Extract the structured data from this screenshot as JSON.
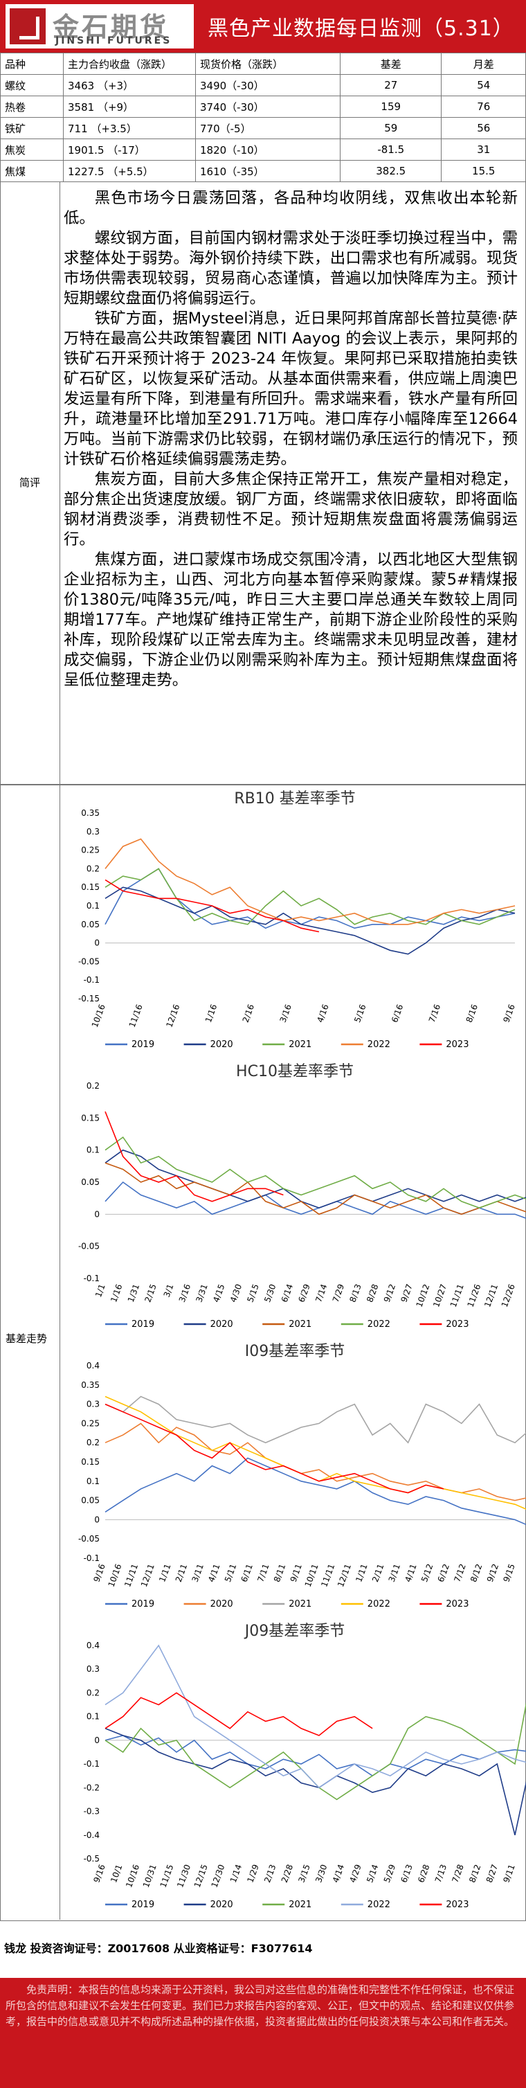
{
  "header": {
    "logo_cn": "金石期货",
    "logo_en": "JINSHI FUTURES",
    "title": "黑色产业数据每日监测（5.31）"
  },
  "price_table": {
    "headers": [
      "品种",
      "主力合约收盘（涨跌）",
      "现货价格（涨跌）",
      "基差",
      "月差"
    ],
    "rows": [
      [
        "螺纹",
        "3463 （+3）",
        "3490（-30）",
        "27",
        "54"
      ],
      [
        "热卷",
        "3581 （+9）",
        "3740（-30）",
        "159",
        "76"
      ],
      [
        "铁矿",
        "711 （+3.5）",
        "770（-5）",
        "59",
        "56"
      ],
      [
        "焦炭",
        "1901.5 （-17）",
        "1820（-10）",
        "-81.5",
        "31"
      ],
      [
        "焦煤",
        "1227.5 （+5.5）",
        "1610（-35）",
        "382.5",
        "15.5"
      ]
    ]
  },
  "commentary": {
    "label": "简评",
    "paragraphs": [
      "黑色市场今日震荡回落，各品种均收阴线，双焦收出本轮新低。",
      "螺纹钢方面，目前国内钢材需求处于淡旺季切换过程当中，需求整体处于弱势。海外钢价持续下跌，出口需求也有所减弱。现货市场供需表现较弱，贸易商心态谨慎，普遍以加快降库为主。预计短期螺纹盘面仍将偏弱运行。",
      "铁矿方面，据Mysteel消息，近日果阿邦首席部长普拉莫德·萨万特在最高公共政策智囊团 NITI Aayog 的会议上表示，果阿邦的铁矿石开采预计将于 2023-24 年恢复。果阿邦已采取措施拍卖铁矿石矿区，以恢复采矿活动。从基本面供需来看，供应端上周澳巴发运量有所下降，到港量有所回升。需求端来看，铁水产量有所回升，疏港量环比增加至291.71万吨。港口库存小幅降库至12664万吨。当前下游需求仍比较弱，在钢材端仍承压运行的情况下，预计铁矿石价格延续偏弱震荡走势。",
      "焦炭方面，目前大多焦企保持正常开工，焦炭产量相对稳定，部分焦企出货速度放缓。钢厂方面，终端需求依旧疲软，即将面临钢材消费淡季，消费韧性不足。预计短期焦炭盘面将震荡偏弱运行。",
      "焦煤方面，进口蒙煤市场成交氛围冷清，以西北地区大型焦钢企业招标为主，山西、河北方向基本暂停采购蒙煤。蒙5#精煤报价1380元/吨降35元/吨，昨日三大主要口岸总通关车数较上周同期增177车。产地煤矿维持正常生产，前期下游企业阶段性的采购补库，现阶段煤矿以正常去库为主。终端需求未见明显改善，建材成交偏弱，下游企业仍以刚需采购补库为主。预计短期焦煤盘面将呈低位整理走势。"
    ]
  },
  "basis_label": "基差走势",
  "chart_data": [
    {
      "type": "line",
      "title": "RB10 基差率季节",
      "x_ticks": [
        "10/16",
        "11/16",
        "12/16",
        "1/16",
        "2/16",
        "3/16",
        "4/16",
        "5/16",
        "6/16",
        "7/16",
        "8/16",
        "9/16"
      ],
      "ylim": [
        -0.15,
        0.35
      ],
      "y_ticks": [
        "0.35",
        "0.3",
        "0.25",
        "0.2",
        "0.15",
        "0.1",
        "0.05",
        "0",
        "-0.05",
        "-0.1",
        "-0.15"
      ],
      "legend": [
        "2019",
        "2020",
        "2021",
        "2022",
        "2023"
      ],
      "series": [
        {
          "name": "2019",
          "color": "#4472c4",
          "values": [
            0.05,
            0.14,
            0.17,
            0.2,
            0.12,
            0.08,
            0.05,
            0.06,
            0.07,
            0.04,
            0.06,
            0.05,
            0.07,
            0.06,
            0.04,
            0.05,
            0.05,
            0.07,
            0.06,
            0.05,
            0.07,
            0.06,
            0.07,
            0.08
          ]
        },
        {
          "name": "2020",
          "color": "#1f3c88",
          "values": [
            0.12,
            0.15,
            0.14,
            0.12,
            0.1,
            0.08,
            0.1,
            0.07,
            0.06,
            0.05,
            0.08,
            0.05,
            0.04,
            0.03,
            0.02,
            0.0,
            -0.02,
            -0.03,
            0.0,
            0.04,
            0.06,
            0.07,
            0.09,
            0.08
          ]
        },
        {
          "name": "2021",
          "color": "#70ad47",
          "values": [
            0.15,
            0.18,
            0.17,
            0.2,
            0.12,
            0.06,
            0.08,
            0.06,
            0.05,
            0.1,
            0.14,
            0.1,
            0.12,
            0.09,
            0.05,
            0.07,
            0.08,
            0.06,
            0.05,
            0.08,
            0.06,
            0.05,
            0.07,
            0.09
          ]
        },
        {
          "name": "2022",
          "color": "#ed7d31",
          "values": [
            0.2,
            0.26,
            0.28,
            0.22,
            0.18,
            0.16,
            0.13,
            0.15,
            0.1,
            0.08,
            0.06,
            0.07,
            0.06,
            0.07,
            0.08,
            0.06,
            0.05,
            0.05,
            0.06,
            0.08,
            0.09,
            0.08,
            0.09,
            0.1
          ]
        },
        {
          "name": "2023",
          "color": "#ff0000",
          "values": [
            0.17,
            0.14,
            0.13,
            0.12,
            0.12,
            0.11,
            0.1,
            0.08,
            0.09,
            0.07,
            0.06,
            0.04,
            0.03
          ]
        }
      ]
    },
    {
      "type": "line",
      "title": "HC10基差率季节",
      "x_ticks": [
        "1/1",
        "1/16",
        "1/31",
        "2/15",
        "3/1",
        "3/16",
        "3/31",
        "4/15",
        "4/30",
        "5/15",
        "5/30",
        "6/14",
        "6/29",
        "7/14",
        "7/29",
        "8/13",
        "8/28",
        "9/12",
        "9/27",
        "10/12",
        "10/27",
        "11/11",
        "11/26",
        "12/11",
        "12/26"
      ],
      "ylim": [
        -0.1,
        0.2
      ],
      "y_ticks": [
        "0.2",
        "0.15",
        "0.1",
        "0.05",
        "0",
        "-0.05",
        "-0.1"
      ],
      "legend": [
        "2019",
        "2020",
        "2021",
        "2022",
        "2023"
      ],
      "series": [
        {
          "name": "2019",
          "color": "#4472c4",
          "values": [
            0.02,
            0.05,
            0.03,
            0.02,
            0.01,
            0.02,
            0.0,
            0.01,
            0.02,
            0.03,
            0.01,
            0.0,
            0.01,
            0.02,
            0.01,
            0.0,
            0.02,
            0.01,
            0.0,
            0.01,
            0.0,
            0.01,
            0.0,
            0.0,
            -0.01
          ]
        },
        {
          "name": "2020",
          "color": "#1f3c88",
          "values": [
            0.08,
            0.1,
            0.09,
            0.07,
            0.06,
            0.05,
            0.04,
            0.03,
            0.02,
            0.03,
            0.04,
            0.02,
            0.01,
            0.02,
            0.03,
            0.02,
            0.03,
            0.04,
            0.03,
            0.02,
            0.03,
            0.02,
            0.03,
            0.02,
            0.03
          ]
        },
        {
          "name": "2021",
          "color": "#c55a11",
          "values": [
            0.08,
            0.07,
            0.05,
            0.06,
            0.04,
            0.05,
            0.04,
            0.03,
            0.05,
            0.02,
            0.01,
            0.02,
            0.0,
            0.01,
            0.03,
            0.02,
            0.01,
            0.02,
            0.03,
            0.01,
            0.0,
            0.01,
            0.02,
            0.01,
            0.0
          ]
        },
        {
          "name": "2022",
          "color": "#70ad47",
          "values": [
            0.1,
            0.12,
            0.08,
            0.09,
            0.07,
            0.06,
            0.05,
            0.07,
            0.05,
            0.06,
            0.04,
            0.03,
            0.04,
            0.05,
            0.06,
            0.04,
            0.05,
            0.03,
            0.02,
            0.04,
            0.02,
            0.01,
            0.02,
            0.03,
            0.02
          ]
        },
        {
          "name": "2023",
          "color": "#ff0000",
          "values": [
            0.16,
            0.09,
            0.06,
            0.05,
            0.06,
            0.03,
            0.02,
            0.03,
            0.04,
            0.04,
            0.03
          ]
        }
      ]
    },
    {
      "type": "line",
      "title": "I09基差率季节",
      "x_ticks": [
        "9/16",
        "10/16",
        "11/11",
        "12/11",
        "1/11",
        "2/11",
        "3/11",
        "4/11",
        "5/11",
        "6/11",
        "7/11",
        "8/11",
        "9/11",
        "10/11",
        "11/11",
        "12/11",
        "1/11",
        "2/11",
        "3/11",
        "4/11",
        "5/12",
        "6/12",
        "7/12",
        "8/12",
        "9/12",
        "9/15"
      ],
      "ylim": [
        -0.1,
        0.4
      ],
      "y_ticks": [
        "0.4",
        "0.35",
        "0.3",
        "0.25",
        "0.2",
        "0.15",
        "0.1",
        "0.05",
        "0",
        "-0.05",
        "-0.1"
      ],
      "legend": [
        "2019",
        "2020",
        "2021",
        "2022",
        "2023"
      ],
      "series": [
        {
          "name": "2019",
          "color": "#4472c4",
          "values": [
            0.02,
            0.05,
            0.08,
            0.1,
            0.12,
            0.1,
            0.14,
            0.12,
            0.16,
            0.14,
            0.12,
            0.1,
            0.09,
            0.08,
            0.1,
            0.07,
            0.05,
            0.04,
            0.06,
            0.05,
            0.03,
            0.02,
            0.01,
            0.0,
            -0.02,
            -0.05
          ]
        },
        {
          "name": "2020",
          "color": "#ed7d31",
          "values": [
            0.2,
            0.22,
            0.25,
            0.2,
            0.24,
            0.22,
            0.18,
            0.17,
            0.2,
            0.16,
            0.14,
            0.12,
            0.13,
            0.1,
            0.11,
            0.12,
            0.1,
            0.09,
            0.1,
            0.08,
            0.07,
            0.08,
            0.06,
            0.05,
            0.06,
            0.04
          ]
        },
        {
          "name": "2021",
          "color": "#a5a5a5",
          "values": [
            0.3,
            0.28,
            0.32,
            0.3,
            0.26,
            0.25,
            0.24,
            0.25,
            0.22,
            0.2,
            0.22,
            0.24,
            0.25,
            0.28,
            0.3,
            0.22,
            0.25,
            0.2,
            0.3,
            0.28,
            0.25,
            0.3,
            0.22,
            0.2,
            0.24,
            0.35
          ]
        },
        {
          "name": "2022",
          "color": "#ffc000",
          "values": [
            0.32,
            0.3,
            0.28,
            0.25,
            0.22,
            0.2,
            0.18,
            0.2,
            0.18,
            0.16,
            0.14,
            0.12,
            0.1,
            0.12,
            0.1,
            0.09,
            0.08,
            0.07,
            0.09,
            0.08,
            0.07,
            0.06,
            0.05,
            0.04,
            0.02,
            0.0
          ]
        },
        {
          "name": "2023",
          "color": "#ff0000",
          "values": [
            0.3,
            0.28,
            0.26,
            0.24,
            0.22,
            0.18,
            0.16,
            0.2,
            0.15,
            0.13,
            0.14,
            0.12,
            0.1,
            0.11,
            0.12,
            0.1,
            0.08,
            0.07,
            0.09,
            0.08
          ]
        }
      ]
    },
    {
      "type": "line",
      "title": "J09基差率季节",
      "x_ticks": [
        "9/16",
        "10/1",
        "10/16",
        "10/31",
        "11/15",
        "11/30",
        "12/15",
        "12/30",
        "1/14",
        "1/29",
        "2/13",
        "2/28",
        "3/15",
        "3/30",
        "4/14",
        "4/29",
        "5/14",
        "5/29",
        "6/13",
        "6/28",
        "7/13",
        "7/28",
        "8/12",
        "8/27",
        "9/11"
      ],
      "ylim": [
        -0.5,
        0.4
      ],
      "y_ticks": [
        "0.4",
        "0.3",
        "0.2",
        "0.1",
        "0",
        "-0.1",
        "-0.2",
        "-0.3",
        "-0.4",
        "-0.5"
      ],
      "legend": [
        "2019",
        "2020",
        "2021",
        "2022",
        "2023"
      ],
      "series": [
        {
          "name": "2019",
          "color": "#4472c4",
          "values": [
            0.0,
            0.02,
            -0.02,
            0.01,
            -0.05,
            0.0,
            -0.08,
            -0.05,
            -0.1,
            -0.12,
            -0.08,
            -0.1,
            -0.06,
            -0.12,
            -0.1,
            -0.15,
            -0.1,
            -0.12,
            -0.08,
            -0.1,
            -0.06,
            -0.08,
            -0.05,
            -0.04,
            -0.05
          ]
        },
        {
          "name": "2020",
          "color": "#1f3c88",
          "values": [
            0.05,
            0.02,
            0.0,
            -0.05,
            -0.08,
            -0.1,
            -0.12,
            -0.08,
            -0.1,
            -0.15,
            -0.12,
            -0.18,
            -0.2,
            -0.15,
            -0.18,
            -0.22,
            -0.2,
            -0.12,
            -0.15,
            -0.1,
            -0.12,
            -0.15,
            -0.1,
            -0.4,
            -0.05
          ]
        },
        {
          "name": "2021",
          "color": "#70ad47",
          "values": [
            0.0,
            -0.05,
            0.05,
            -0.02,
            0.0,
            -0.1,
            -0.15,
            -0.2,
            -0.15,
            -0.1,
            -0.05,
            -0.12,
            -0.2,
            -0.25,
            -0.2,
            -0.15,
            -0.1,
            0.05,
            0.1,
            0.08,
            0.05,
            0.0,
            -0.05,
            -0.1,
            0.3
          ]
        },
        {
          "name": "2022",
          "color": "#8faadc",
          "values": [
            0.15,
            0.2,
            0.3,
            0.4,
            0.25,
            0.1,
            0.05,
            0.0,
            -0.05,
            -0.1,
            -0.15,
            -0.12,
            -0.2,
            -0.15,
            -0.1,
            -0.12,
            -0.15,
            -0.1,
            -0.05,
            -0.08,
            -0.1,
            -0.08,
            -0.05,
            -0.08,
            -0.1
          ]
        },
        {
          "name": "2023",
          "color": "#ff0000",
          "values": [
            0.05,
            0.1,
            0.18,
            0.15,
            0.2,
            0.15,
            0.1,
            0.05,
            0.12,
            0.08,
            0.1,
            0.05,
            0.02,
            0.08,
            0.1,
            0.05
          ]
        }
      ]
    }
  ],
  "contact": "钱龙 投资咨询证号：Z0017608 从业资格证号：F3077614",
  "disclaimer": "免责声明：本报告的信息均来源于公开资料，我公司对这些信息的准确性和完整性不作任何保证，也不保证所包含的信息和建议不会发生任何变更。我们已力求报告内容的客观、公正，但文中的观点、结论和建议仅供参考，报告中的信息或意见并不构成所述品种的操作依据，投资者据此做出的任何投资决策与本公司和作者无关。"
}
